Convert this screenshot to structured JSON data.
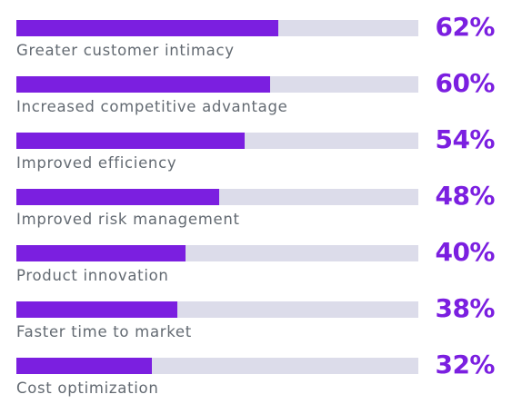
{
  "chart_data": {
    "type": "bar",
    "orientation": "horizontal",
    "categories": [
      "Greater customer intimacy",
      "Increased competitive advantage",
      "Improved efficiency",
      "Improved risk management",
      "Product innovation",
      "Faster time to market",
      "Cost optimization"
    ],
    "values": [
      62,
      60,
      54,
      48,
      40,
      38,
      32
    ],
    "value_labels": [
      "62%",
      "60%",
      "54%",
      "48%",
      "40%",
      "38%",
      "32%"
    ],
    "xlim": [
      0,
      95
    ],
    "title": "",
    "xlabel": "",
    "ylabel": "",
    "grid": false,
    "legend": "none"
  },
  "colors": {
    "bar": "#7b1fe0",
    "track": "#dcdcea",
    "value_text": "#7b1fe0",
    "label_text": "#636a72"
  }
}
